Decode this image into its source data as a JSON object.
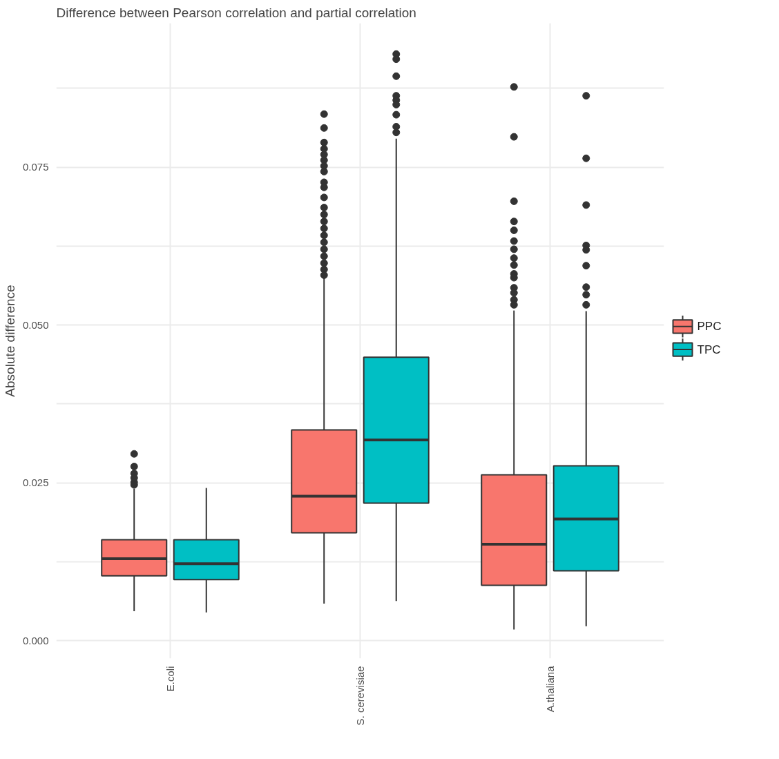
{
  "chart_data": {
    "type": "box",
    "title": "Difference between Pearson correlation and partial correlation",
    "ylabel": "Absolute difference",
    "categories": [
      "E.coli",
      "S. cerevisiae",
      "A.thaliana"
    ],
    "ylim": [
      -0.0028,
      0.0978
    ],
    "yticks": [
      {
        "value": 0,
        "label": "0.000"
      },
      {
        "value": 0.0125,
        "label": null
      },
      {
        "value": 0.025,
        "label": "0.025"
      },
      {
        "value": 0.0375,
        "label": null
      },
      {
        "value": 0.05,
        "label": "0.050"
      },
      {
        "value": 0.0625,
        "label": null
      },
      {
        "value": 0.075,
        "label": "0.075"
      },
      {
        "value": 0.0875,
        "label": null
      }
    ],
    "grid": true,
    "legend": "right",
    "series": [
      {
        "name": "PPC",
        "color": "#f8766d",
        "boxes": [
          {
            "low": 0.0047,
            "q1": 0.0103,
            "median": 0.013,
            "q3": 0.016,
            "high": 0.0241,
            "outliers": [
              0.0296,
              0.0276,
              0.0265,
              0.0258,
              0.0251,
              0.0247
            ]
          },
          {
            "low": 0.0059,
            "q1": 0.0171,
            "median": 0.0229,
            "q3": 0.0334,
            "high": 0.0575,
            "outliers": [
              0.0834,
              0.0812,
              0.0789,
              0.0779,
              0.077,
              0.0761,
              0.0752,
              0.0743,
              0.0726,
              0.0718,
              0.0702,
              0.0686,
              0.0675,
              0.0664,
              0.0653,
              0.0642,
              0.0631,
              0.062,
              0.0609,
              0.0598,
              0.0588,
              0.0579
            ]
          },
          {
            "low": 0.0018,
            "q1": 0.0088,
            "median": 0.0153,
            "q3": 0.0263,
            "high": 0.0523,
            "outliers": [
              0.0877,
              0.0798,
              0.0696,
              0.0664,
              0.065,
              0.0633,
              0.062,
              0.0606,
              0.0595,
              0.0581,
              0.0575,
              0.0559,
              0.0551,
              0.054,
              0.0532
            ]
          }
        ]
      },
      {
        "name": "TPC",
        "color": "#00bfc4",
        "boxes": [
          {
            "low": 0.0045,
            "q1": 0.0097,
            "median": 0.0122,
            "q3": 0.016,
            "high": 0.0242
          },
          {
            "low": 0.0063,
            "q1": 0.0218,
            "median": 0.0318,
            "q3": 0.0449,
            "high": 0.0795,
            "outliers": [
              0.0929,
              0.0921,
              0.0894,
              0.0863,
              0.0856,
              0.0849,
              0.0833,
              0.0814,
              0.0805
            ]
          },
          {
            "low": 0.0023,
            "q1": 0.0111,
            "median": 0.0193,
            "q3": 0.0277,
            "high": 0.0522,
            "outliers": [
              0.0863,
              0.0764,
              0.069,
              0.0626,
              0.0619,
              0.0594,
              0.056,
              0.0548,
              0.0532
            ]
          }
        ]
      }
    ]
  }
}
